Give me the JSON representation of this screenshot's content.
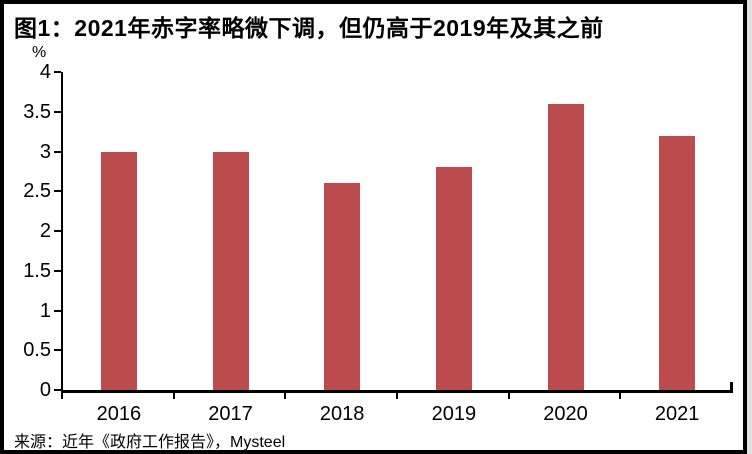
{
  "figure": {
    "title": "图1：2021年赤字率略微下调，但仍高于2019年及其之前",
    "unit_label": "%",
    "source_prefix": "来源：近年《政府工作报告》，",
    "source_suffix": "Mysteel"
  },
  "chart_data": {
    "type": "bar",
    "title": "图1：2021年赤字率略微下调，但仍高于2019年及其之前",
    "ylabel": "%",
    "xlabel": "",
    "categories": [
      "2016",
      "2017",
      "2018",
      "2019",
      "2020",
      "2021"
    ],
    "values": [
      3.0,
      3.0,
      2.6,
      2.8,
      3.6,
      3.2
    ],
    "ylim": [
      0,
      4
    ],
    "ytick_step": 0.5,
    "yticks": [
      "4",
      "3.5",
      "3",
      "2.5",
      "2",
      "1.5",
      "1",
      "0.5",
      "0"
    ],
    "bar_color": "#BB4B4D",
    "axis_color": "#000000",
    "grid": false,
    "legend": "none",
    "source": "来源：近年《政府工作报告》，Mysteel"
  }
}
